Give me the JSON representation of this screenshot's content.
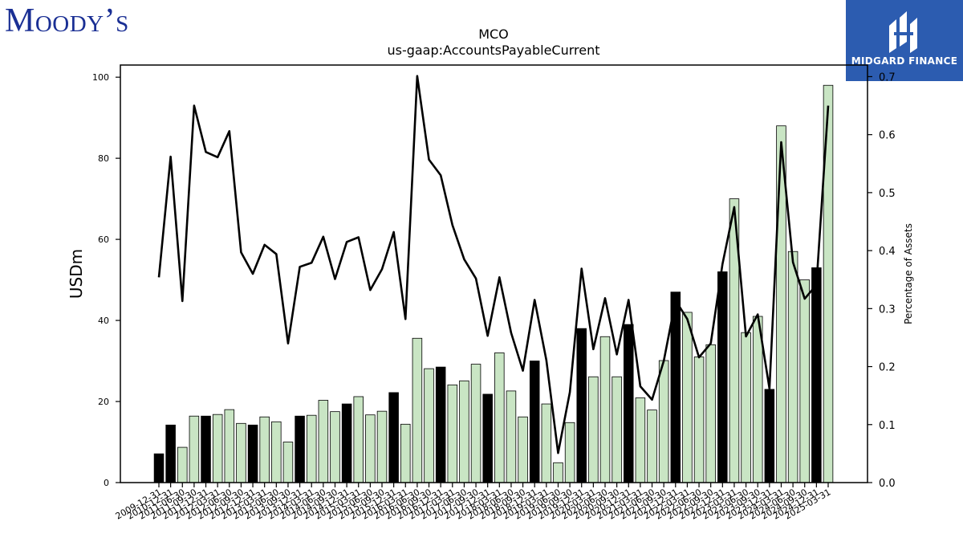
{
  "branding": {
    "left_logo_text": "Moody’s",
    "right_logo_text": "MIDGARD FINANCE"
  },
  "colors": {
    "bar_light": "#c9e5c4",
    "bar_dark": "#000000",
    "line": "#000000",
    "logo_blue": "#1a2f94",
    "badge_blue": "#2c5cb0"
  },
  "chart_data": {
    "type": "bar",
    "title": "MCO",
    "subtitle": "us-gaap:AccountsPayableCurrent",
    "ylabel": "USDm",
    "y2label": "Percentage of Assets",
    "ylim": [
      0,
      103
    ],
    "y2lim": [
      0,
      0.72
    ],
    "yticks": [
      0,
      20,
      40,
      60,
      80,
      100
    ],
    "y2ticks": [
      0.0,
      0.1,
      0.2,
      0.3,
      0.4,
      0.5,
      0.6,
      0.7
    ],
    "grid": false,
    "categories": [
      "2009-12-31",
      "2010-12-31",
      "2011-06-30",
      "2011-09-30",
      "2011-12-31",
      "2012-03-31",
      "2012-06-30",
      "2012-09-30",
      "2012-12-31",
      "2013-03-31",
      "2013-06-30",
      "2013-09-30",
      "2013-12-31",
      "2014-03-31",
      "2014-06-30",
      "2014-09-30",
      "2014-12-31",
      "2015-03-31",
      "2015-06-30",
      "2015-09-30",
      "2015-12-31",
      "2016-03-31",
      "2016-06-30",
      "2016-09-30",
      "2016-12-31",
      "2017-03-31",
      "2017-06-30",
      "2017-09-30",
      "2017-12-31",
      "2018-03-31",
      "2018-06-30",
      "2018-09-30",
      "2018-12-31",
      "2019-03-31",
      "2019-06-30",
      "2019-09-30",
      "2019-12-31",
      "2020-03-31",
      "2020-06-30",
      "2020-09-30",
      "2020-12-31",
      "2021-03-31",
      "2021-06-30",
      "2021-09-30",
      "2021-12-31",
      "2022-03-31",
      "2022-06-30",
      "2022-09-30",
      "2022-12-31",
      "2023-03-31",
      "2023-06-30",
      "2023-09-30",
      "2023-12-31",
      "2024-03-31",
      "2024-06-30",
      "2024-09-30",
      "2024-12-31",
      "2025-03-31"
    ],
    "x_tick_labels": [
      "2009-12-31",
      "2010-12-31",
      "2011-06-30",
      "2011-09-30",
      "2011-12-31",
      "2012-03-31",
      "2012-06-30",
      "2012-09-30",
      "2012-12-31",
      "2013-03-31",
      "2013-06-30",
      "2013-09-30",
      "2013-12-31",
      "2014-03-31",
      "2014-06-30",
      "2014-09-30",
      "2014-12-31",
      "2015-03-31",
      "2015-06-30",
      "2015-09-30",
      "2015-12-31",
      "2016-03-31",
      "2016-06-30",
      "2016-09-30",
      "2016-12-31",
      "2017-03-31",
      "2017-06-30",
      "2017-09-30",
      "2017-12-31",
      "2018-03-31",
      "2018-06-30",
      "2018-09-30",
      "2018-12-31",
      "2019-03-31",
      "2019-06-30",
      "2019-09-30",
      "2019-12-31",
      "2020-03-31",
      "2020-06-30",
      "2020-09-30",
      "2020-12-31",
      "2021-03-31",
      "2021-06-30",
      "2021-09-30",
      "2021-12-31",
      "2022-03-31",
      "2022-06-30",
      "2022-09-30",
      "2022-12-31",
      "2023-03-31",
      "2023-06-30",
      "2023-09-30",
      "2023-12-31",
      "2024-03-31",
      "2024-06-30",
      "2024-09-30",
      "2024-12-31",
      "2025-03-31"
    ],
    "series": [
      {
        "type": "bar",
        "values": [
          7.1,
          14.2,
          8.7,
          16.4,
          16.4,
          16.8,
          18.0,
          14.6,
          14.2,
          16.2,
          15.0,
          10.0,
          16.4,
          16.6,
          20.3,
          17.5,
          19.4,
          21.2,
          16.7,
          17.6,
          22.2,
          14.4,
          35.6,
          28.1,
          28.5,
          24.1,
          25.1,
          29.2,
          21.8,
          32.0,
          22.6,
          16.2,
          30.0,
          19.4,
          4.9,
          14.8,
          38.0,
          26.1,
          36.0,
          26.1,
          39.0,
          20.9,
          17.9,
          30.1,
          47.0,
          42.0,
          31.0,
          34.0,
          52.0,
          70.0,
          37.0,
          41.0,
          23.0,
          88.0,
          57.0,
          50.0,
          53.0,
          98.0
        ],
        "dark": [
          true,
          true,
          false,
          false,
          true,
          false,
          false,
          false,
          true,
          false,
          false,
          false,
          true,
          false,
          false,
          false,
          true,
          false,
          false,
          false,
          true,
          false,
          false,
          false,
          true,
          false,
          false,
          false,
          true,
          false,
          false,
          false,
          true,
          false,
          false,
          false,
          true,
          false,
          false,
          false,
          true,
          false,
          false,
          false,
          true,
          false,
          false,
          false,
          true,
          false,
          false,
          false,
          true,
          false,
          false,
          false,
          true,
          false
        ]
      },
      {
        "type": "line",
        "axis": "right",
        "values": [
          0.354,
          0.562,
          0.313,
          0.65,
          0.57,
          0.561,
          0.606,
          0.397,
          0.36,
          0.41,
          0.394,
          0.24,
          0.372,
          0.379,
          0.424,
          0.351,
          0.415,
          0.423,
          0.332,
          0.368,
          0.432,
          0.282,
          0.701,
          0.557,
          0.53,
          0.444,
          0.385,
          0.352,
          0.253,
          0.354,
          0.258,
          0.193,
          0.315,
          0.211,
          0.051,
          0.156,
          0.369,
          0.23,
          0.318,
          0.221,
          0.315,
          0.166,
          0.143,
          0.21,
          0.314,
          0.282,
          0.216,
          0.24,
          0.377,
          0.475,
          0.252,
          0.29,
          0.162,
          0.587,
          0.38,
          0.317,
          0.341,
          0.65
        ]
      }
    ]
  }
}
